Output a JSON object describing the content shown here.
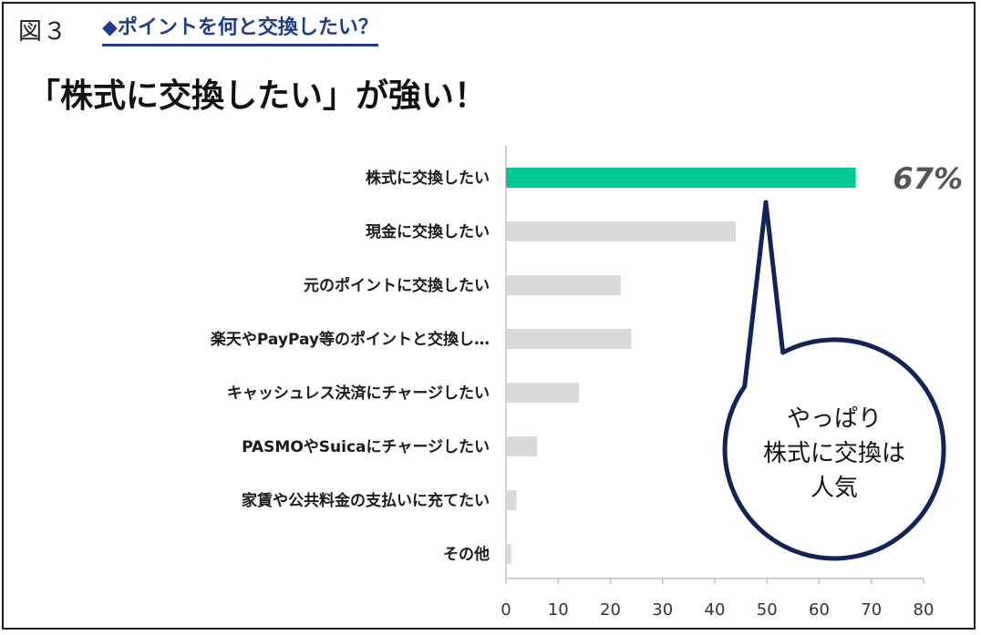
{
  "figure_label": "図３",
  "subtitle": "◆ポイントを何と交換したい？",
  "headline": "「株式に交換したい」が強い！",
  "callout": {
    "lines": [
      "やっぱり",
      "株式に交換は",
      "人気"
    ]
  },
  "colors": {
    "highlight": "#00c896",
    "bar": "#d9d9d9",
    "bubble_border": "#132257",
    "axis_line": "#bfbfbf"
  },
  "chart_data": {
    "type": "bar",
    "orientation": "horizontal",
    "categories": [
      "株式に交換したい",
      "現金に交換したい",
      "元のポイントに交換したい",
      "楽天やPayPay等のポイントと交換し…",
      "キャッシュレス決済にチャージしたい",
      "PASMOやSuicaにチャージしたい",
      "家賃や公共料金の支払いに充てたい",
      "その他"
    ],
    "values": [
      67,
      44,
      22,
      24,
      14,
      6,
      2,
      1
    ],
    "highlight_index": 0,
    "value_labels": [
      {
        "index": 0,
        "text": "67%"
      }
    ],
    "xlim": [
      0,
      80
    ],
    "xticks": [
      0,
      10,
      20,
      30,
      40,
      50,
      60,
      70,
      80
    ],
    "grid": false,
    "xlabel": "",
    "ylabel": ""
  }
}
